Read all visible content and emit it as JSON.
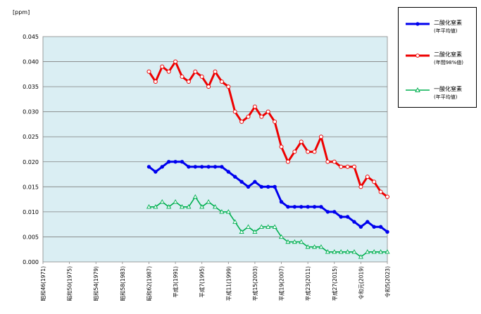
{
  "chart_data": {
    "type": "line",
    "ylabel": "[ppm]",
    "ylim": [
      0,
      0.045
    ],
    "yticks": [
      "0.000",
      "0.005",
      "0.010",
      "0.015",
      "0.020",
      "0.025",
      "0.030",
      "0.035",
      "0.040",
      "0.045"
    ],
    "xticks": [
      "昭和46(1971)",
      "昭和50(1975)",
      "昭和54(1979)",
      "昭和58(1983)",
      "昭和62(1987)",
      "平成3(1991)",
      "平成7(1995)",
      "平成11(1999)",
      "平成15(2003)",
      "平成19(2007)",
      "平成23(2011)",
      "平成27(2015)",
      "令和元(2019)",
      "令和5(2023)"
    ],
    "x_start": 1971,
    "x_end": 2023,
    "grid": true,
    "legend_position": "top-right",
    "series": [
      {
        "name": "二酸化窒素",
        "sub": "(年平均値)",
        "color": "#0000ee",
        "marker": "filled-circle",
        "x": [
          1987,
          1988,
          1989,
          1990,
          1991,
          1992,
          1993,
          1994,
          1995,
          1996,
          1997,
          1998,
          1999,
          2000,
          2001,
          2002,
          2003,
          2004,
          2005,
          2006,
          2007,
          2008,
          2009,
          2010,
          2011,
          2012,
          2013,
          2014,
          2015,
          2016,
          2017,
          2018,
          2019,
          2020,
          2021,
          2022,
          2023
        ],
        "values": [
          0.019,
          0.018,
          0.019,
          0.02,
          0.02,
          0.02,
          0.019,
          0.019,
          0.019,
          0.019,
          0.019,
          0.019,
          0.018,
          0.017,
          0.016,
          0.015,
          0.016,
          0.015,
          0.015,
          0.015,
          0.012,
          0.011,
          0.011,
          0.011,
          0.011,
          0.011,
          0.011,
          0.01,
          0.01,
          0.009,
          0.009,
          0.008,
          0.007,
          0.008,
          0.007,
          0.007,
          0.006
        ]
      },
      {
        "name": "二酸化窒素",
        "sub": "(年間98%値)",
        "color": "#ee0000",
        "marker": "open-circle",
        "x": [
          1987,
          1988,
          1989,
          1990,
          1991,
          1992,
          1993,
          1994,
          1995,
          1996,
          1997,
          1998,
          1999,
          2000,
          2001,
          2002,
          2003,
          2004,
          2005,
          2006,
          2007,
          2008,
          2009,
          2010,
          2011,
          2012,
          2013,
          2014,
          2015,
          2016,
          2017,
          2018,
          2019,
          2020,
          2021,
          2022,
          2023
        ],
        "values": [
          0.038,
          0.036,
          0.039,
          0.038,
          0.04,
          0.037,
          0.036,
          0.038,
          0.037,
          0.035,
          0.038,
          0.036,
          0.035,
          0.03,
          0.028,
          0.029,
          0.031,
          0.029,
          0.03,
          0.028,
          0.023,
          0.02,
          0.022,
          0.024,
          0.022,
          0.022,
          0.025,
          0.02,
          0.02,
          0.019,
          0.019,
          0.019,
          0.015,
          0.017,
          0.016,
          0.014,
          0.013
        ]
      },
      {
        "name": "一酸化窒素",
        "sub": "(年平均値)",
        "color": "#00b050",
        "marker": "open-triangle",
        "x": [
          1987,
          1988,
          1989,
          1990,
          1991,
          1992,
          1993,
          1994,
          1995,
          1996,
          1997,
          1998,
          1999,
          2000,
          2001,
          2002,
          2003,
          2004,
          2005,
          2006,
          2007,
          2008,
          2009,
          2010,
          2011,
          2012,
          2013,
          2014,
          2015,
          2016,
          2017,
          2018,
          2019,
          2020,
          2021,
          2022,
          2023
        ],
        "values": [
          0.011,
          0.011,
          0.012,
          0.011,
          0.012,
          0.011,
          0.011,
          0.013,
          0.011,
          0.012,
          0.011,
          0.01,
          0.01,
          0.008,
          0.006,
          0.007,
          0.006,
          0.007,
          0.007,
          0.007,
          0.005,
          0.004,
          0.004,
          0.004,
          0.003,
          0.003,
          0.003,
          0.002,
          0.002,
          0.002,
          0.002,
          0.002,
          0.001,
          0.002,
          0.002,
          0.002,
          0.002
        ]
      }
    ]
  }
}
